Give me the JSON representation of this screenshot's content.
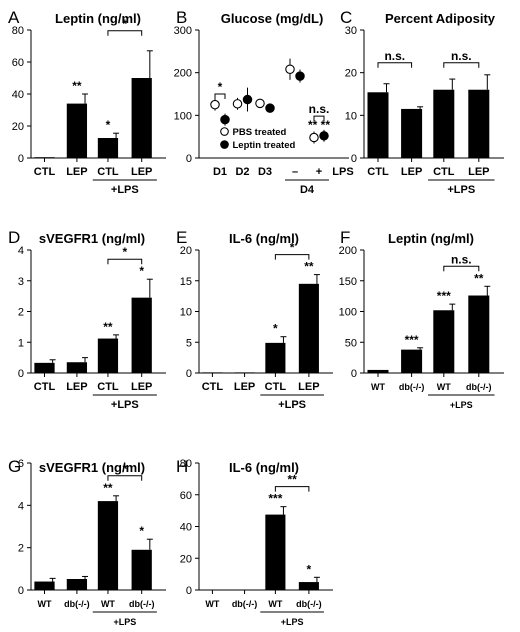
{
  "chart_data": [
    {
      "panel": "A",
      "type": "bar",
      "title": "Leptin (ng/ml)",
      "categories": [
        "CTL",
        "LEP",
        "CTL",
        "LEP"
      ],
      "group_label": "+LPS",
      "values": [
        0.5,
        34,
        12.5,
        50
      ],
      "errors": [
        0,
        6,
        3,
        17
      ],
      "ylim": [
        0,
        80
      ],
      "yticks": [
        "0",
        "20",
        "40",
        "60",
        "80"
      ],
      "bar_annotations": [
        "",
        "**",
        "*",
        ""
      ],
      "brackets": [
        {
          "label": "*"
        }
      ]
    },
    {
      "panel": "B",
      "type": "scatter",
      "title": "Glucose (mg/dL)",
      "categories": [
        "D1",
        "D2",
        "D3",
        "–",
        "+"
      ],
      "group_label": "D4",
      "x_suffix": "LPS",
      "series": [
        {
          "name": "PBS treated",
          "values": [
            125,
            127,
            128,
            208,
            48
          ],
          "errors": [
            14,
            14,
            10,
            25,
            14
          ]
        },
        {
          "name": "Leptin treated",
          "values": [
            90,
            137,
            117,
            192,
            52
          ],
          "errors": [
            14,
            28,
            10,
            15,
            14
          ]
        }
      ],
      "ylim": [
        0,
        300
      ],
      "yticks": [
        "0",
        "100",
        "200",
        "300"
      ],
      "point_annotations": [
        "",
        "",
        "",
        "",
        "** **"
      ],
      "brackets": [
        {
          "label": "*"
        },
        {
          "label": "n.s."
        }
      ]
    },
    {
      "panel": "C",
      "type": "bar",
      "title": "Percent Adiposity",
      "categories": [
        "CTL",
        "LEP",
        "CTL",
        "LEP"
      ],
      "group_label": "+LPS",
      "values": [
        15.4,
        11.5,
        16,
        16
      ],
      "errors": [
        2,
        0.5,
        2.5,
        3.5
      ],
      "ylim": [
        0,
        30
      ],
      "yticks": [
        "0",
        "10",
        "20",
        "30"
      ],
      "bar_annotations": [
        "",
        "",
        "",
        ""
      ],
      "brackets": [
        {
          "label": "n.s."
        },
        {
          "label": "n.s."
        }
      ]
    },
    {
      "panel": "D",
      "type": "bar",
      "title": "sVEGFR1 (ng/ml)",
      "categories": [
        "CTL",
        "LEP",
        "CTL",
        "LEP"
      ],
      "group_label": "+LPS",
      "values": [
        0.33,
        0.35,
        1.12,
        2.45
      ],
      "errors": [
        0.1,
        0.15,
        0.12,
        0.6
      ],
      "ylim": [
        0,
        4
      ],
      "yticks": [
        "0",
        "1",
        "2",
        "3",
        "4"
      ],
      "bar_annotations": [
        "",
        "",
        "**",
        "*"
      ],
      "brackets": [
        {
          "label": "*"
        }
      ]
    },
    {
      "panel": "E",
      "type": "bar",
      "title": "IL-6 (ng/ml)",
      "categories": [
        "CTL",
        "LEP",
        "CTL",
        "LEP"
      ],
      "group_label": "+LPS",
      "values": [
        0.1,
        0.1,
        4.9,
        14.5
      ],
      "errors": [
        0,
        0,
        1,
        1.5
      ],
      "ylim": [
        0,
        20
      ],
      "yticks": [
        "0",
        "5",
        "10",
        "15",
        "20"
      ],
      "bar_annotations": [
        "",
        "",
        "*",
        "**"
      ],
      "brackets": [
        {
          "label": "*"
        }
      ]
    },
    {
      "panel": "F",
      "type": "bar",
      "title": "Leptin (ng/ml)",
      "categories": [
        "WT",
        "db(-/-)",
        "WT",
        "db(-/-)"
      ],
      "group_label": "+LPS",
      "values": [
        5,
        38,
        102,
        126
      ],
      "errors": [
        0,
        3,
        10,
        15
      ],
      "ylim": [
        0,
        200
      ],
      "yticks": [
        "0",
        "50",
        "100",
        "150",
        "200"
      ],
      "bar_annotations": [
        "",
        "***",
        "***",
        "**"
      ],
      "brackets": [
        {
          "label": "n.s."
        }
      ]
    },
    {
      "panel": "G",
      "type": "bar",
      "title": "sVEGFR1 (ng/ml)",
      "categories": [
        "WT",
        "db(-/-)",
        "WT",
        "db(-/-)"
      ],
      "group_label": "+LPS",
      "values": [
        0.4,
        0.52,
        4.2,
        1.9
      ],
      "errors": [
        0.15,
        0.12,
        0.25,
        0.5
      ],
      "ylim": [
        0,
        6
      ],
      "yticks": [
        "0",
        "2",
        "4",
        "6"
      ],
      "bar_annotations": [
        "",
        "",
        "**",
        "*"
      ],
      "brackets": [
        {
          "label": "*"
        }
      ]
    },
    {
      "panel": "H",
      "type": "bar",
      "title": "IL-6 (ng/ml)",
      "categories": [
        "WT",
        "db(-/-)",
        "WT",
        "db(-/-)"
      ],
      "group_label": "+LPS",
      "values": [
        0.3,
        0.2,
        47.5,
        5
      ],
      "errors": [
        0,
        0,
        5,
        3
      ],
      "ylim": [
        0,
        80
      ],
      "yticks": [
        "0",
        "20",
        "40",
        "60",
        "80"
      ],
      "bar_annotations": [
        "",
        "",
        "***",
        "*"
      ],
      "brackets": [
        {
          "label": "**"
        }
      ]
    }
  ]
}
